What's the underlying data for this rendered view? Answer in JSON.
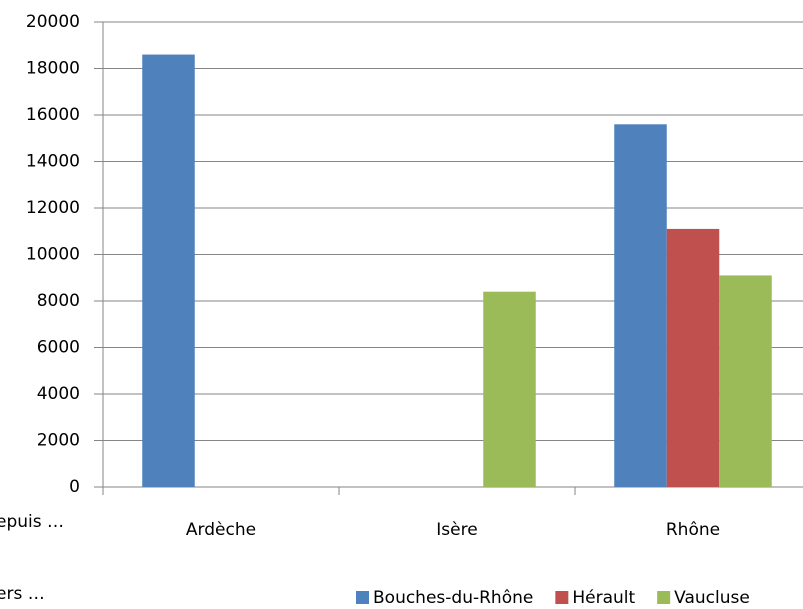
{
  "chart_data": {
    "type": "bar",
    "categories": [
      "Ardèche",
      "Isère",
      "Rhône"
    ],
    "series": [
      {
        "name": "Bouches-du-Rhône",
        "color": "#4f81bd",
        "values": [
          18600,
          null,
          15600
        ]
      },
      {
        "name": "Hérault",
        "color": "#c0504d",
        "values": [
          null,
          null,
          11100
        ]
      },
      {
        "name": "Vaucluse",
        "color": "#9bbb59",
        "values": [
          null,
          8400,
          9100
        ]
      }
    ],
    "ylim": [
      0,
      20000
    ],
    "yticks": [
      0,
      2000,
      4000,
      6000,
      8000,
      10000,
      12000,
      14000,
      16000,
      18000,
      20000
    ],
    "grid": true,
    "legend": "bottom",
    "annotations": [
      "epuis …",
      "ers …"
    ]
  }
}
